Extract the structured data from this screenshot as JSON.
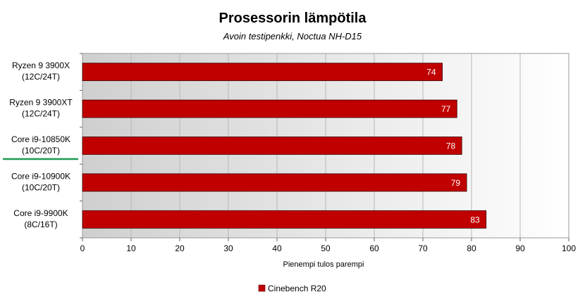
{
  "chart_data": {
    "type": "bar",
    "orientation": "horizontal",
    "title": "Prosessorin lämpötila",
    "subtitle": "Avoin testipenkki, Noctua NH-D15",
    "xlabel": "Pienempi tulos parempi",
    "ylabel": "",
    "xlim": [
      0,
      100
    ],
    "xticks": [
      0,
      10,
      20,
      30,
      40,
      50,
      60,
      70,
      80,
      90,
      100
    ],
    "categories": [
      [
        "Ryzen 9 3900X",
        "(12C/24T)"
      ],
      [
        "Ryzen 9 3900XT",
        "(12C/24T)"
      ],
      [
        "Core i9-10850K",
        "(10C/20T)"
      ],
      [
        "Core i9-10900K",
        "(10C/20T)"
      ],
      [
        "Core i9-9900K",
        "(8C/16T)"
      ]
    ],
    "highlighted_category": 2,
    "series": [
      {
        "name": "Cinebench R20",
        "values": [
          74,
          77,
          78,
          79,
          83
        ],
        "color": "#c00000"
      }
    ],
    "data_labels": true,
    "grid": "vertical",
    "legend": "bottom"
  }
}
